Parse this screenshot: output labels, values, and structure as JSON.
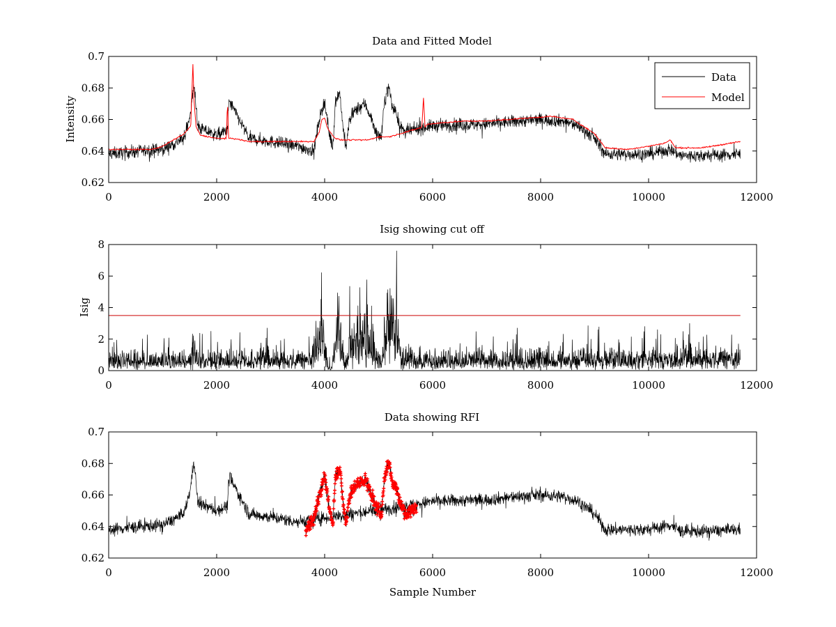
{
  "colors": {
    "data": "#000000",
    "model": "#ff0000",
    "rfi": "#ff0000",
    "cutoff": "#cc0000"
  },
  "chart_data": [
    {
      "type": "line",
      "title": "Data and Fitted Model",
      "xlabel": "",
      "ylabel": "Intensity",
      "xlim": [
        0,
        12000
      ],
      "ylim": [
        0.62,
        0.7
      ],
      "xticks": [
        "0",
        "2000",
        "4000",
        "6000",
        "8000",
        "10000",
        "12000"
      ],
      "yticks": [
        "0.62",
        "0.64",
        "0.66",
        "0.68",
        "0.7"
      ],
      "legend": {
        "position": "top-right",
        "entries": [
          "Data",
          "Model"
        ]
      },
      "series": [
        {
          "name": "Data",
          "style": "noisy-line",
          "noise": 0.004,
          "x": [
            0,
            600,
            1000,
            1400,
            1520,
            1580,
            1650,
            2000,
            2200,
            2230,
            2600,
            3000,
            3500,
            3800,
            3900,
            4000,
            4080,
            4150,
            4200,
            4280,
            4350,
            4400,
            4450,
            4550,
            4650,
            4750,
            4850,
            4950,
            5050,
            5100,
            5150,
            5200,
            5250,
            5320,
            5400,
            5500,
            5700,
            6000,
            7000,
            7600,
            8000,
            8400,
            8700,
            9000,
            9200,
            9500,
            10000,
            10400,
            10600,
            11000,
            11700
          ],
          "values": [
            0.638,
            0.64,
            0.641,
            0.648,
            0.665,
            0.683,
            0.655,
            0.65,
            0.653,
            0.672,
            0.648,
            0.646,
            0.643,
            0.64,
            0.66,
            0.672,
            0.652,
            0.642,
            0.672,
            0.677,
            0.652,
            0.642,
            0.658,
            0.665,
            0.668,
            0.67,
            0.662,
            0.652,
            0.648,
            0.668,
            0.678,
            0.68,
            0.668,
            0.665,
            0.655,
            0.652,
            0.654,
            0.656,
            0.657,
            0.659,
            0.66,
            0.659,
            0.656,
            0.648,
            0.638,
            0.638,
            0.638,
            0.641,
            0.637,
            0.637,
            0.638
          ]
        },
        {
          "name": "Model",
          "style": "line",
          "x": [
            0,
            800,
            1000,
            1400,
            1520,
            1560,
            1580,
            1620,
            1700,
            2000,
            2180,
            2200,
            2220,
            2300,
            2600,
            3000,
            3500,
            3800,
            3900,
            3950,
            4000,
            4050,
            4100,
            4200,
            4300,
            4600,
            4800,
            5000,
            5200,
            5400,
            5800,
            5830,
            5860,
            5900,
            6200,
            6600,
            7000,
            7800,
            8200,
            8600,
            9000,
            9200,
            9600,
            10000,
            10300,
            10400,
            10500,
            11000,
            11700
          ],
          "values": [
            0.641,
            0.641,
            0.643,
            0.651,
            0.656,
            0.695,
            0.672,
            0.655,
            0.65,
            0.648,
            0.648,
            0.672,
            0.648,
            0.648,
            0.646,
            0.646,
            0.646,
            0.646,
            0.652,
            0.66,
            0.661,
            0.655,
            0.652,
            0.648,
            0.647,
            0.647,
            0.647,
            0.649,
            0.649,
            0.651,
            0.655,
            0.674,
            0.655,
            0.657,
            0.658,
            0.659,
            0.659,
            0.661,
            0.662,
            0.66,
            0.651,
            0.642,
            0.641,
            0.643,
            0.645,
            0.647,
            0.642,
            0.642,
            0.646
          ]
        }
      ]
    },
    {
      "type": "line",
      "title": "Isig showing cut off",
      "xlabel": "",
      "ylabel": "Isig",
      "xlim": [
        0,
        12000
      ],
      "ylim": [
        0,
        8
      ],
      "xticks": [
        "0",
        "2000",
        "4000",
        "6000",
        "8000",
        "10000",
        "12000"
      ],
      "yticks": [
        "0",
        "2",
        "4",
        "6",
        "8"
      ],
      "cutoff": 3.5,
      "series": [
        {
          "name": "Isig",
          "style": "spiky",
          "x": [
            0,
            1500,
            1560,
            1620,
            3700,
            3900,
            3950,
            4000,
            4050,
            4120,
            4200,
            4250,
            4300,
            4380,
            4450,
            4550,
            4650,
            4750,
            4850,
            4950,
            5050,
            5150,
            5200,
            5250,
            5300,
            5350,
            5420,
            5600,
            11700
          ],
          "values": [
            1.2,
            1.2,
            3.1,
            1.3,
            1.2,
            3.2,
            4.6,
            3.0,
            0.8,
            0.2,
            4.0,
            5.2,
            3.0,
            0.3,
            2.5,
            3.6,
            4.1,
            3.9,
            3.2,
            1.5,
            1.0,
            4.0,
            6.0,
            4.8,
            3.5,
            4.3,
            1.5,
            1.2,
            1.4
          ]
        }
      ]
    },
    {
      "type": "line",
      "title": "Data showing RFI",
      "xlabel": "Sample Number",
      "ylabel": "",
      "xlim": [
        0,
        12000
      ],
      "ylim": [
        0.62,
        0.7
      ],
      "xticks": [
        "0",
        "2000",
        "4000",
        "6000",
        "8000",
        "10000",
        "12000"
      ],
      "yticks": [
        "0.62",
        "0.64",
        "0.66",
        "0.68",
        "0.7"
      ],
      "rfi_range": [
        3650,
        5700
      ],
      "series": [
        {
          "name": "Data",
          "style": "noisy-line",
          "noise": 0.004,
          "x": [
            0,
            600,
            1000,
            1400,
            1520,
            1580,
            1650,
            2000,
            2200,
            2230,
            2600,
            3000,
            3500,
            5700,
            6000,
            7000,
            7600,
            8000,
            8400,
            8700,
            9000,
            9200,
            9500,
            10000,
            10400,
            10600,
            11000,
            11700
          ],
          "values": [
            0.638,
            0.64,
            0.641,
            0.648,
            0.665,
            0.683,
            0.655,
            0.65,
            0.653,
            0.672,
            0.648,
            0.646,
            0.643,
            0.654,
            0.656,
            0.657,
            0.659,
            0.66,
            0.659,
            0.656,
            0.648,
            0.638,
            0.638,
            0.638,
            0.641,
            0.637,
            0.637,
            0.638
          ]
        },
        {
          "name": "RFI",
          "style": "rfi-markers",
          "x": [
            3650,
            3800,
            3900,
            4000,
            4080,
            4150,
            4200,
            4280,
            4350,
            4400,
            4450,
            4550,
            4650,
            4750,
            4850,
            4950,
            5050,
            5100,
            5150,
            5200,
            5250,
            5320,
            5400,
            5500,
            5600,
            5700
          ],
          "values": [
            0.638,
            0.645,
            0.66,
            0.672,
            0.652,
            0.642,
            0.672,
            0.677,
            0.652,
            0.642,
            0.658,
            0.665,
            0.668,
            0.67,
            0.662,
            0.652,
            0.648,
            0.668,
            0.678,
            0.68,
            0.668,
            0.665,
            0.655,
            0.648,
            0.65,
            0.652
          ]
        }
      ]
    }
  ]
}
